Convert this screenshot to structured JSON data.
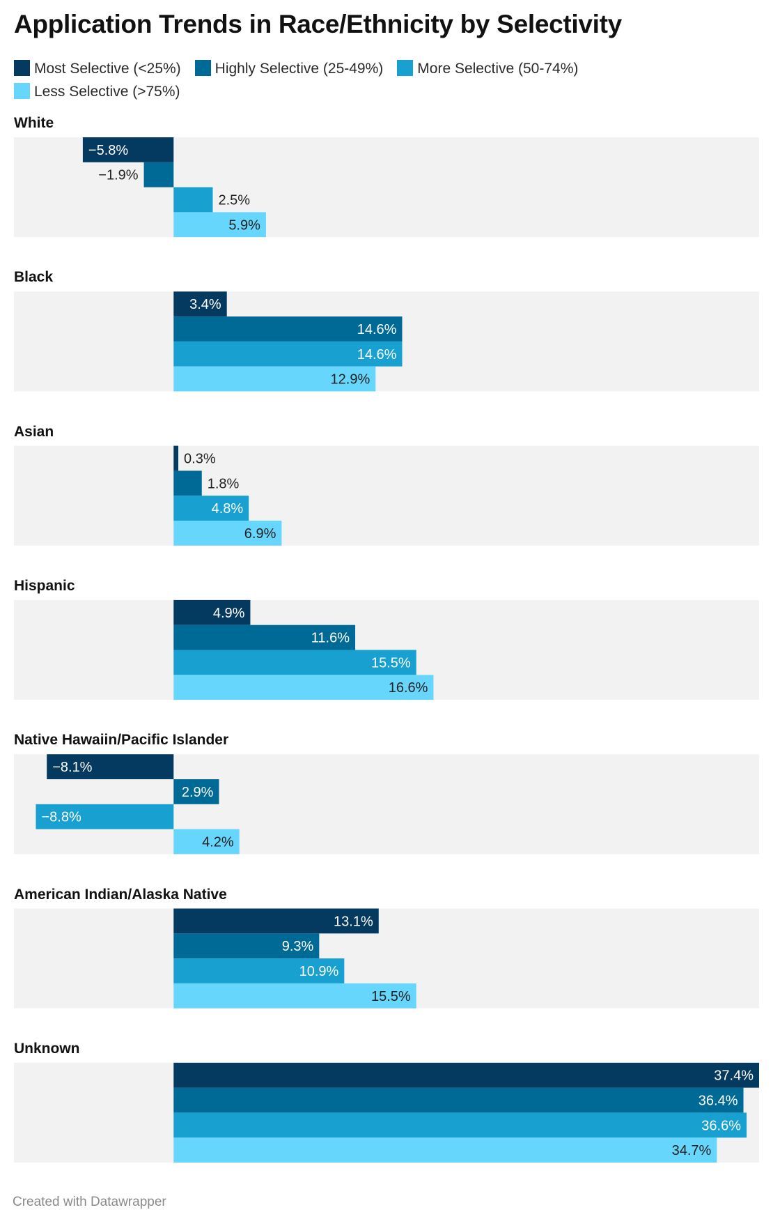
{
  "title": "Application Trends in Race/Ethnicity by Selectivity",
  "footer": "Created with Datawrapper",
  "colors": {
    "panel_bg": "#f2f2f2",
    "label_dark": "#222222",
    "label_light": "#ffffff"
  },
  "legend": [
    {
      "label": "Most Selective (<25%)",
      "color": "#043a5f"
    },
    {
      "label": "Highly Selective (25-49%)",
      "color": "#006a96"
    },
    {
      "label": "More Selective (50-74%)",
      "color": "#17a0d0"
    },
    {
      "label": "Less Selective (>75%)",
      "color": "#66d6fc"
    }
  ],
  "chart_data": {
    "type": "bar",
    "orientation": "horizontal",
    "xlim": [
      -10.2,
      37.4
    ],
    "series_names": [
      "Most Selective (<25%)",
      "Highly Selective (25-49%)",
      "More Selective (50-74%)",
      "Less Selective (>75%)"
    ],
    "groups": [
      {
        "name": "White",
        "values": [
          -5.8,
          -1.9,
          2.5,
          5.9
        ],
        "labels": [
          "−5.8%",
          "−1.9%",
          "2.5%",
          "5.9%"
        ]
      },
      {
        "name": "Black",
        "values": [
          3.4,
          14.6,
          14.6,
          12.9
        ],
        "labels": [
          "3.4%",
          "14.6%",
          "14.6%",
          "12.9%"
        ]
      },
      {
        "name": "Asian",
        "values": [
          0.3,
          1.8,
          4.8,
          6.9
        ],
        "labels": [
          "0.3%",
          "1.8%",
          "4.8%",
          "6.9%"
        ]
      },
      {
        "name": "Hispanic",
        "values": [
          4.9,
          11.6,
          15.5,
          16.6
        ],
        "labels": [
          "4.9%",
          "11.6%",
          "15.5%",
          "16.6%"
        ]
      },
      {
        "name": "Native Hawaiin/Pacific Islander",
        "values": [
          -8.1,
          2.9,
          -8.8,
          4.2
        ],
        "labels": [
          "−8.1%",
          "2.9%",
          "−8.8%",
          "4.2%"
        ]
      },
      {
        "name": "American Indian/Alaska Native",
        "values": [
          13.1,
          9.3,
          10.9,
          15.5
        ],
        "labels": [
          "13.1%",
          "9.3%",
          "10.9%",
          "15.5%"
        ]
      },
      {
        "name": "Unknown",
        "values": [
          37.4,
          36.4,
          36.6,
          34.7
        ],
        "labels": [
          "37.4%",
          "36.4%",
          "36.6%",
          "34.7%"
        ]
      }
    ]
  }
}
